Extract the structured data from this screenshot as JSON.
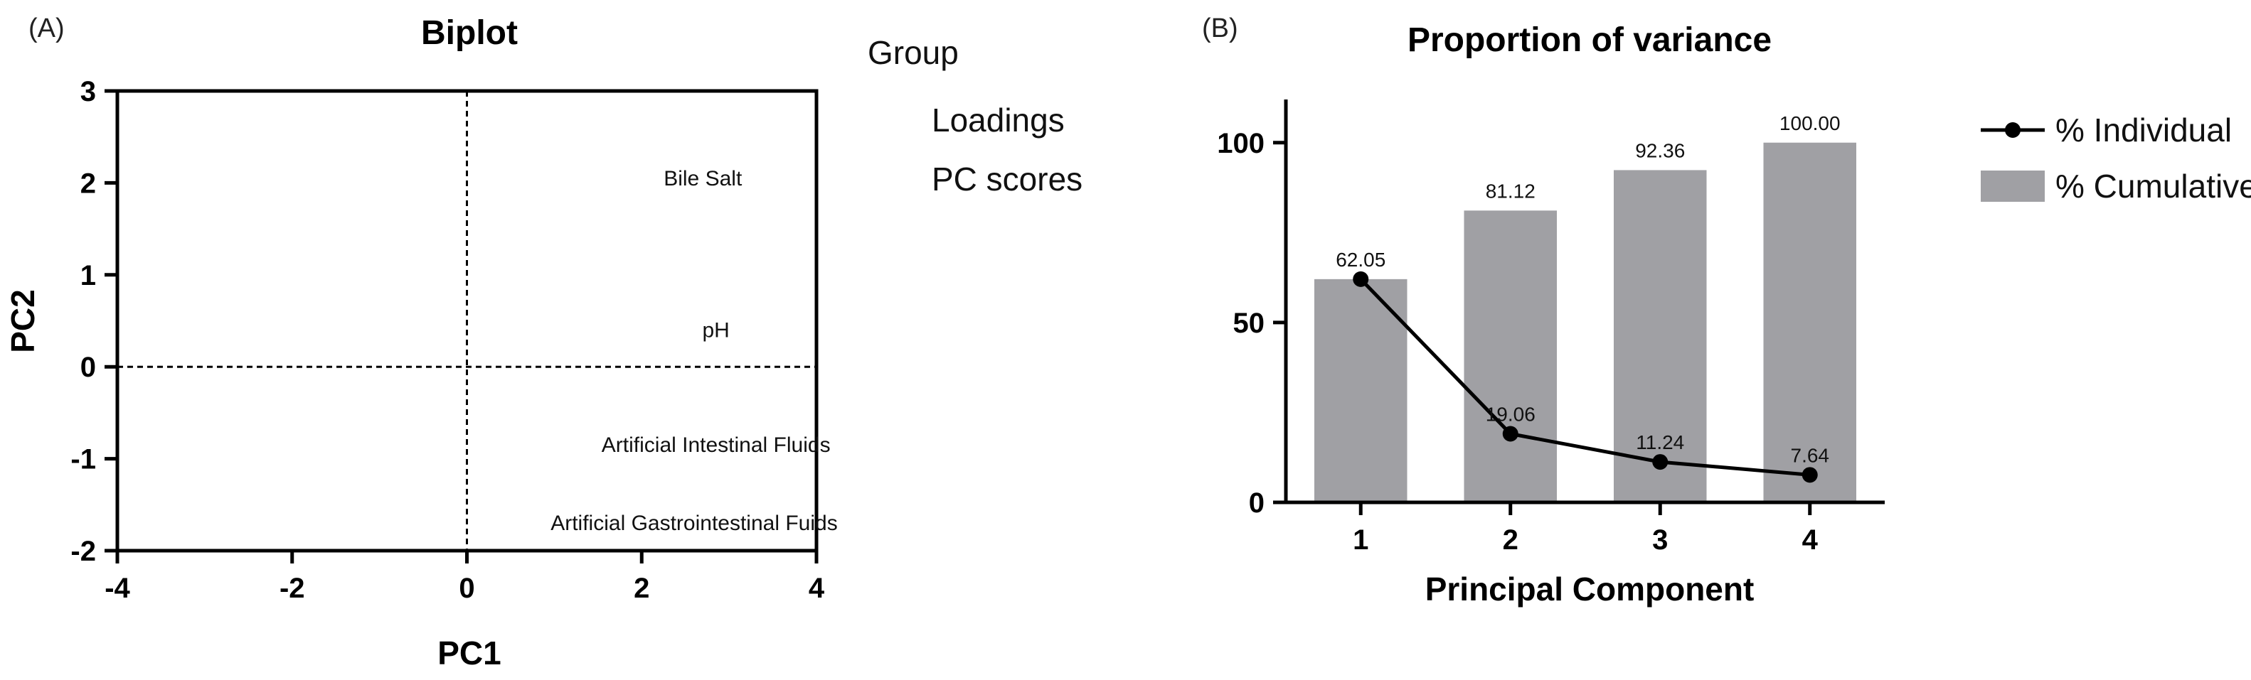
{
  "chart_data": [
    {
      "panel_label": "(A)",
      "type": "scatter",
      "title": "Biplot",
      "xlabel": "PC1",
      "ylabel": "PC2",
      "xlim": [
        -4,
        4
      ],
      "ylim": [
        -2,
        3
      ],
      "xticks": [
        -4,
        -2,
        0,
        2,
        4
      ],
      "yticks": [
        -2,
        -1,
        0,
        1,
        2,
        3
      ],
      "legend": {
        "title": "Group",
        "entries": [
          "Loadings",
          "PC scores"
        ],
        "placement": "top-right"
      },
      "loadings": [
        {
          "label": "Bile Salt",
          "x": 2.7,
          "y": 2.05
        },
        {
          "label": "pH",
          "x": 2.85,
          "y": 0.4
        },
        {
          "label": "Artificial Intestinal Fluids",
          "x": 2.85,
          "y": -0.85
        },
        {
          "label": "Artificial Gastrointestinal Fuids",
          "x": 2.6,
          "y": -1.7
        }
      ]
    },
    {
      "panel_label": "(B)",
      "type": "bar",
      "title": "Proportion of variance",
      "xlabel": "Principal Component",
      "ylabel": "",
      "ylim": [
        0,
        110
      ],
      "yticks": [
        0,
        50,
        100
      ],
      "categories": [
        "1",
        "2",
        "3",
        "4"
      ],
      "legend_placement": "right",
      "series": [
        {
          "name": "% Cumulative",
          "kind": "bar",
          "color": "#a0a0a4",
          "values": [
            62.05,
            81.12,
            92.36,
            100.0
          ],
          "labels": [
            "62.05",
            "81.12",
            "92.36",
            "100.00"
          ]
        },
        {
          "name": "% Individual",
          "kind": "line",
          "color": "#000000",
          "values": [
            62.05,
            19.06,
            11.24,
            7.64
          ],
          "labels": [
            "62.05",
            "19.06",
            "11.24",
            "7.64"
          ]
        }
      ]
    }
  ]
}
